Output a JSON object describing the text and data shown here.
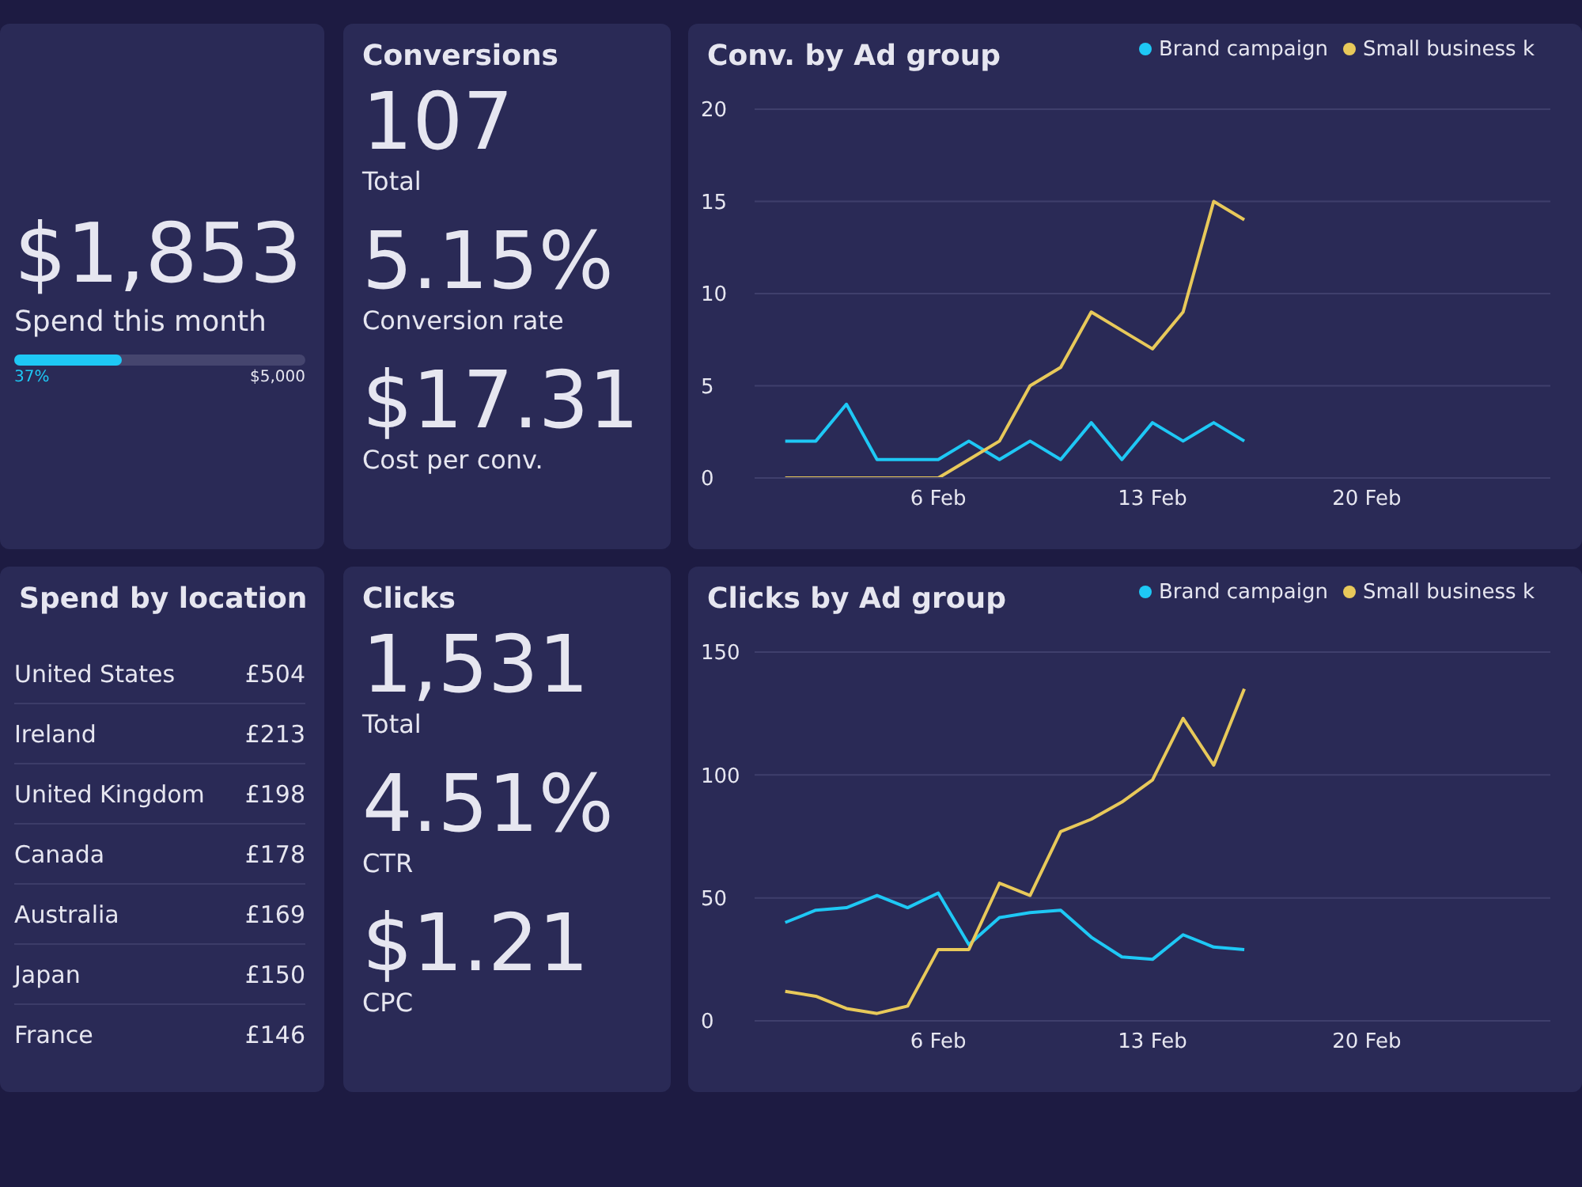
{
  "chart_data": [
    {
      "type": "other",
      "annotations": [
        "$1,853",
        "Spend this month",
        "37%",
        "$5,000"
      ]
    },
    {
      "type": "other",
      "title": "Conversions",
      "annotations": [
        "107",
        "Total",
        "5.15%",
        "Conversion rate",
        "$17.31",
        "Cost per conv."
      ]
    },
    {
      "type": "line",
      "title": "Conv. by Ad group",
      "x": [
        "--02-01",
        "--02-02",
        "--02-03",
        "--02-04",
        "--02-05",
        "--02-06",
        "--02-07",
        "--02-08",
        "--02-09",
        "--02-10",
        "--02-11",
        "--02-12",
        "--02-13",
        "--02-14",
        "--02-15",
        "--02-16"
      ],
      "xlim": [
        "--01-31",
        "--02-26"
      ],
      "xticks": [
        {
          "value": "--02-06",
          "label": "6 Feb"
        },
        {
          "value": "--02-13",
          "label": "13 Feb"
        },
        {
          "value": "--02-20",
          "label": "20 Feb"
        }
      ],
      "ylim": [
        0,
        20
      ],
      "yticks": [
        0,
        5,
        10,
        15,
        20
      ],
      "grid": "y",
      "legend": "top right",
      "marker": "none",
      "line_style": "solid",
      "series": [
        {
          "name": "Brand campaign",
          "color": "#1ec8f5",
          "values": [
            2,
            2,
            4,
            1,
            1,
            1,
            2,
            1,
            2,
            1,
            3,
            1,
            3,
            2,
            3,
            2
          ]
        },
        {
          "name": "Small business k",
          "color": "#e8c95a",
          "values": [
            0,
            0,
            0,
            0,
            0,
            0,
            1,
            2,
            5,
            6,
            9,
            8,
            7,
            9,
            15,
            14
          ]
        }
      ]
    },
    {
      "type": "other",
      "title": "Spend by location",
      "annotations": [
        "United States",
        "£504",
        "Ireland",
        "£213",
        "United Kingdom",
        "£198",
        "Canada",
        "£178",
        "Australia",
        "£169",
        "Japan",
        "£150",
        "France",
        "£146"
      ]
    },
    {
      "type": "other",
      "title": "Clicks",
      "annotations": [
        "1,531",
        "Total",
        "4.51%",
        "CTR",
        "$1.21",
        "CPC"
      ]
    },
    {
      "type": "line",
      "title": "Clicks by Ad group",
      "x": [
        "--02-01",
        "--02-02",
        "--02-03",
        "--02-04",
        "--02-05",
        "--02-06",
        "--02-07",
        "--02-08",
        "--02-09",
        "--02-10",
        "--02-11",
        "--02-12",
        "--02-13",
        "--02-14",
        "--02-15",
        "--02-16"
      ],
      "xlim": [
        "--01-31",
        "--02-26"
      ],
      "xticks": [
        {
          "value": "--02-06",
          "label": "6 Feb"
        },
        {
          "value": "--02-13",
          "label": "13 Feb"
        },
        {
          "value": "--02-20",
          "label": "20 Feb"
        }
      ],
      "ylim": [
        0,
        150
      ],
      "yticks": [
        0,
        50,
        100,
        150
      ],
      "grid": "y",
      "legend": "top right",
      "marker": "none",
      "line_style": "solid",
      "series": [
        {
          "name": "Brand campaign",
          "color": "#1ec8f5",
          "values": [
            40,
            45,
            46,
            51,
            46,
            52,
            31,
            42,
            44,
            45,
            34,
            26,
            25,
            35,
            30,
            29
          ]
        },
        {
          "name": "Small business k",
          "color": "#e8c95a",
          "values": [
            12,
            10,
            5,
            3,
            6,
            29,
            29,
            56,
            51,
            77,
            82,
            89,
            98,
            123,
            104,
            135
          ]
        }
      ]
    }
  ]
}
